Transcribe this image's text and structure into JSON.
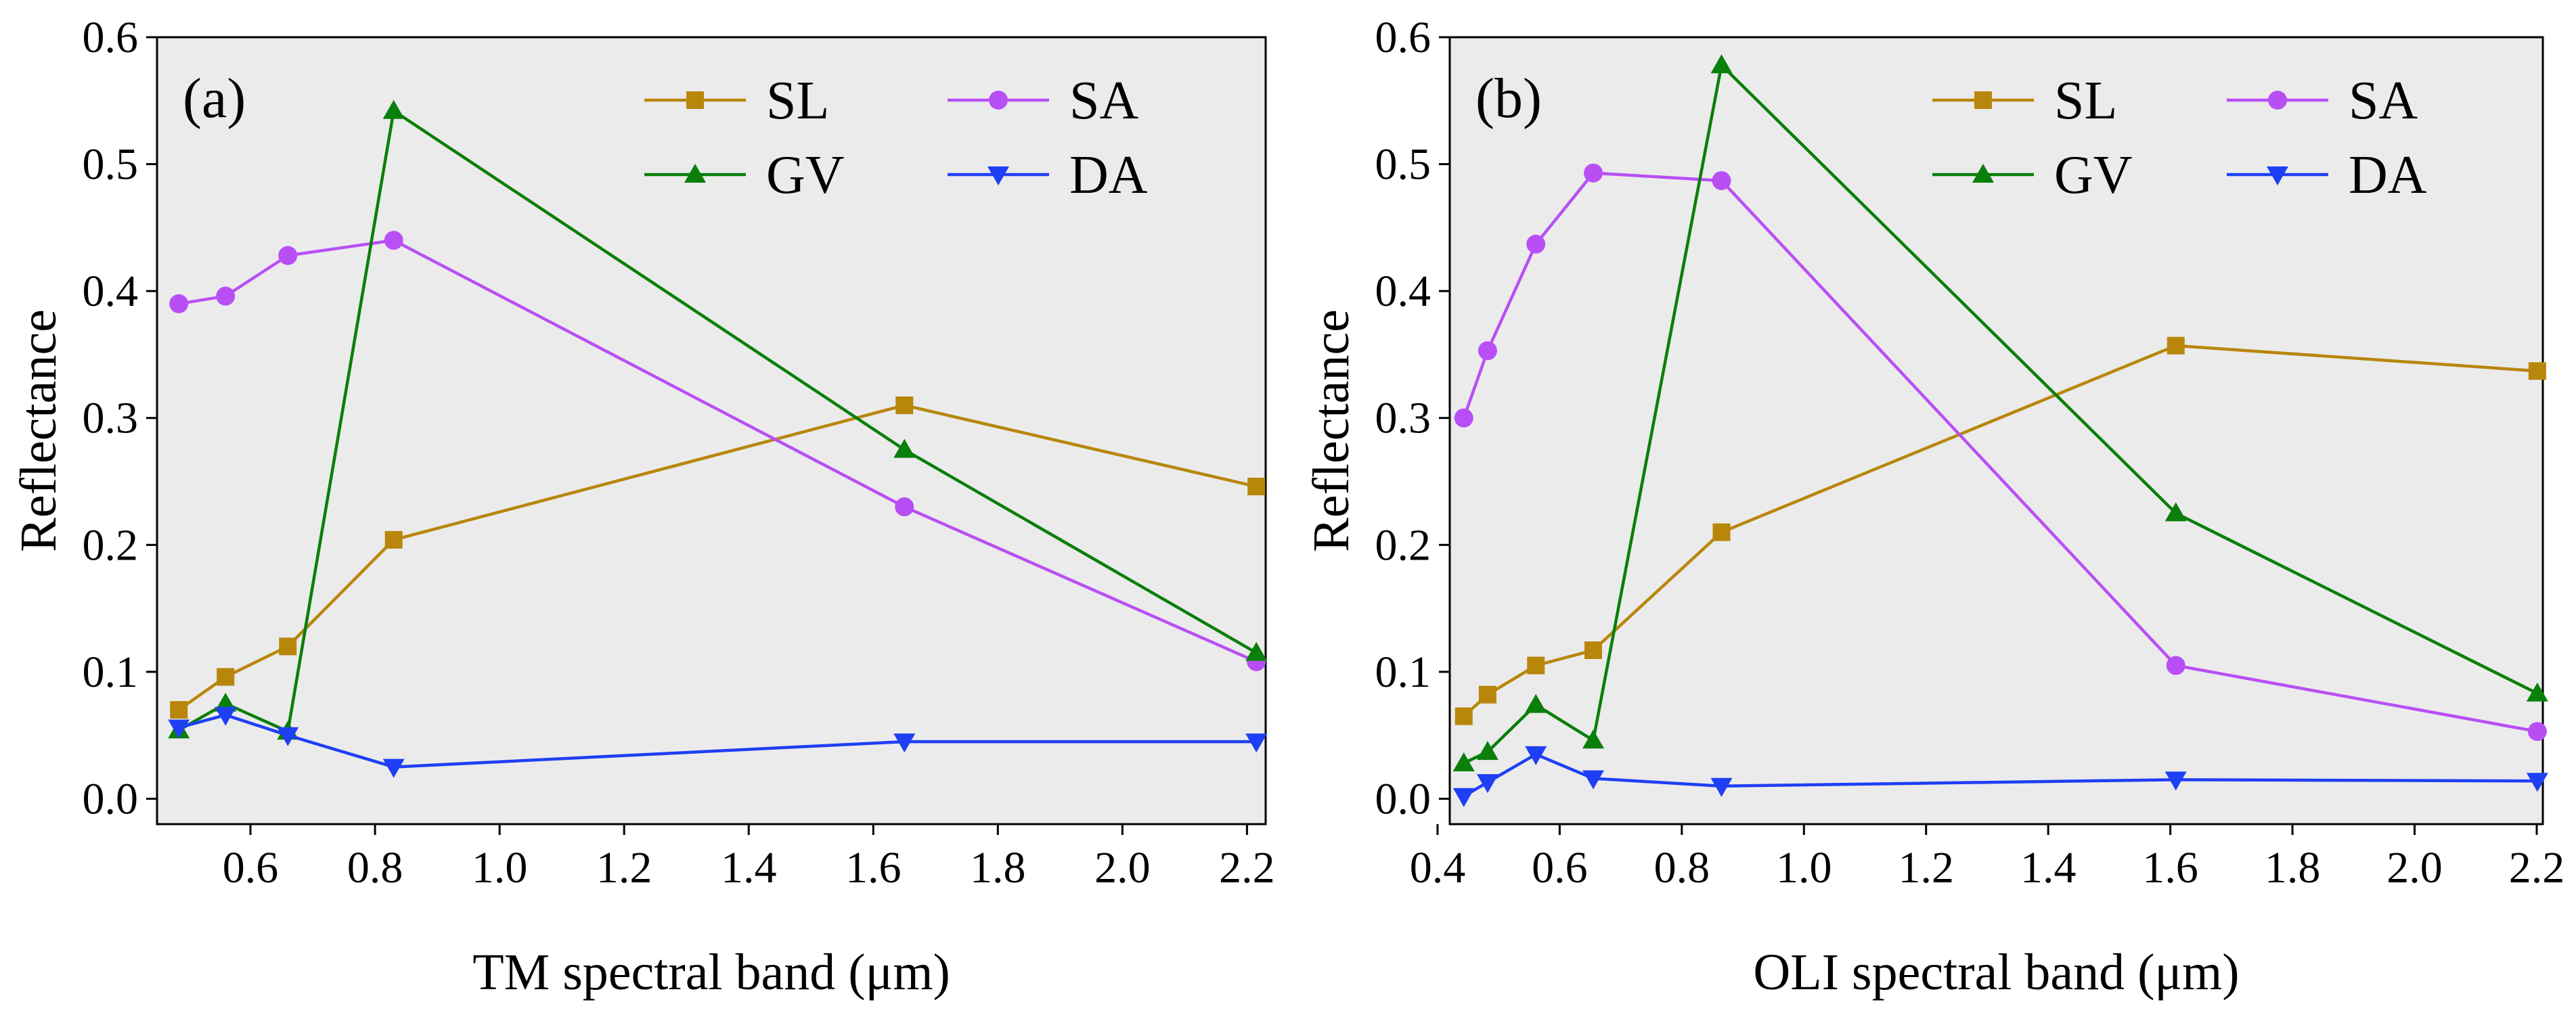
{
  "chart_data": [
    {
      "type": "line",
      "panel_label": "(a)",
      "xlabel": "TM spectral band (μm)",
      "ylabel": "Reflectance",
      "xlim": [
        0.45,
        2.23
      ],
      "ylim": [
        -0.02,
        0.6
      ],
      "xticks": [
        0.6,
        0.8,
        1.0,
        1.2,
        1.4,
        1.6,
        1.8,
        2.0,
        2.2
      ],
      "xtick_labels": [
        "0.6",
        "0.8",
        "1.0",
        "1.2",
        "1.4",
        "1.6",
        "1.8",
        "2.0",
        "2.2"
      ],
      "yticks": [
        0.0,
        0.1,
        0.2,
        0.3,
        0.4,
        0.5,
        0.6
      ],
      "ytick_labels": [
        "0.0",
        "0.1",
        "0.2",
        "0.3",
        "0.4",
        "0.5",
        "0.6"
      ],
      "x": [
        0.485,
        0.56,
        0.66,
        0.83,
        1.65,
        2.215
      ],
      "series": [
        {
          "name": "SL",
          "marker": "square",
          "color": "#B8860B",
          "values": [
            0.07,
            0.096,
            0.12,
            0.204,
            0.31,
            0.246
          ]
        },
        {
          "name": "SA",
          "marker": "circle",
          "color": "#B84FF5",
          "values": [
            0.39,
            0.396,
            0.428,
            0.44,
            0.23,
            0.108
          ]
        },
        {
          "name": "GV",
          "marker": "triangle-up",
          "color": "#0A7F0A",
          "values": [
            0.054,
            0.075,
            0.053,
            0.542,
            0.275,
            0.115
          ]
        },
        {
          "name": "DA",
          "marker": "triangle-down",
          "color": "#1F3FF5",
          "values": [
            0.056,
            0.066,
            0.05,
            0.025,
            0.045,
            0.045
          ]
        }
      ],
      "legend_position": "top-right"
    },
    {
      "type": "line",
      "panel_label": "(b)",
      "xlabel": "OLI spectral band (μm)",
      "ylabel": "Reflectance",
      "xlim": [
        0.42,
        2.21
      ],
      "ylim": [
        -0.02,
        0.6
      ],
      "xticks": [
        0.4,
        0.6,
        0.8,
        1.0,
        1.2,
        1.4,
        1.6,
        1.8,
        2.0,
        2.2
      ],
      "xtick_labels": [
        "0.4",
        "0.6",
        "0.8",
        "1.0",
        "1.2",
        "1.4",
        "1.6",
        "1.8",
        "2.0",
        "2.2"
      ],
      "yticks": [
        0.0,
        0.1,
        0.2,
        0.3,
        0.4,
        0.5,
        0.6
      ],
      "ytick_labels": [
        "0.0",
        "0.1",
        "0.2",
        "0.3",
        "0.4",
        "0.5",
        "0.6"
      ],
      "x": [
        0.443,
        0.482,
        0.561,
        0.655,
        0.865,
        1.609,
        2.201
      ],
      "series": [
        {
          "name": "SL",
          "marker": "square",
          "color": "#B8860B",
          "values": [
            0.065,
            0.082,
            0.105,
            0.117,
            0.21,
            0.357,
            0.337
          ]
        },
        {
          "name": "SA",
          "marker": "circle",
          "color": "#B84FF5",
          "values": [
            0.3,
            0.353,
            0.437,
            0.493,
            0.487,
            0.105,
            0.053
          ]
        },
        {
          "name": "GV",
          "marker": "triangle-up",
          "color": "#0A7F0A",
          "values": [
            0.028,
            0.037,
            0.074,
            0.046,
            0.578,
            0.225,
            0.083
          ]
        },
        {
          "name": "DA",
          "marker": "triangle-down",
          "color": "#1F3FF5",
          "values": [
            0.002,
            0.013,
            0.035,
            0.016,
            0.01,
            0.015,
            0.014
          ]
        }
      ],
      "legend_position": "top-right"
    }
  ]
}
